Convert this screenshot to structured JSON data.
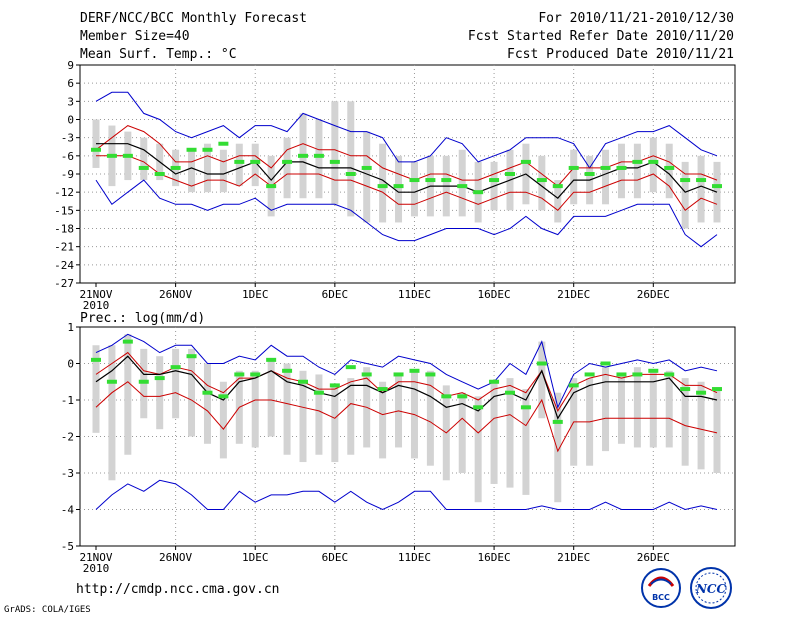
{
  "header": {
    "title": "DERF/NCC/BCC Monthly Forecast",
    "member_size": "Member Size=40",
    "variable": "Mean Surf. Temp.: °C",
    "forecast_period": "For 2010/11/21-2010/12/30",
    "started_date": "Fcst Started Refer Date 2010/11/20",
    "produced_date": "Fcst Produced Date 2010/11/21"
  },
  "footer": {
    "url": "http://cmdp.ncc.cma.gov.cn",
    "grads": "GrADS: COLA/IGES",
    "logo_bcc": "BCC",
    "logo_ncc": "NCC"
  },
  "colors": {
    "envelope": "#0000cc",
    "spread": "#cc0000",
    "mean": "#000000",
    "observed": "#33dd33",
    "box": "#d3d3d3",
    "grid": "#999999"
  },
  "chart_data": [
    {
      "type": "line",
      "title": "Mean Surf. Temp.: °C",
      "ylim": [
        -27,
        9
      ],
      "yticks": [
        "9",
        "6",
        "3",
        "0",
        "-3",
        "-6",
        "-9",
        "-12",
        "-15",
        "-18",
        "-21",
        "-24",
        "-27"
      ],
      "xticks": [
        "21NOV",
        "26NOV",
        "1DEC",
        "6DEC",
        "11DEC",
        "16DEC",
        "21DEC",
        "26DEC"
      ],
      "x_year": "2010",
      "xlim_days": [
        1,
        40
      ],
      "series": [
        {
          "name": "max",
          "values": [
            3,
            4.5,
            4.5,
            1,
            0,
            -2,
            -3,
            -2,
            -1,
            -3,
            -1,
            -1,
            -2,
            1,
            0,
            -1,
            -2,
            -2,
            -3,
            -7,
            -7,
            -6,
            -3,
            -4,
            -7,
            -6,
            -5,
            -3,
            -3,
            -3,
            -4,
            -8,
            -4,
            -3,
            -2,
            -2,
            -1,
            -3,
            -5,
            -6
          ]
        },
        {
          "name": "upper",
          "values": [
            -5,
            -3,
            -1,
            -2,
            -4,
            -7,
            -7,
            -6,
            -7,
            -6,
            -6,
            -8,
            -5,
            -4,
            -5,
            -5,
            -6,
            -6,
            -8,
            -9,
            -10,
            -9,
            -9,
            -10,
            -10,
            -9,
            -8,
            -7,
            -9,
            -11,
            -8,
            -8,
            -8,
            -7,
            -7,
            -6,
            -7,
            -9,
            -9,
            -10
          ]
        },
        {
          "name": "mean",
          "values": [
            -4,
            -4,
            -4,
            -5,
            -7,
            -9,
            -8,
            -9,
            -9,
            -8,
            -7,
            -10,
            -7,
            -7,
            -8,
            -8,
            -8,
            -9,
            -10,
            -12,
            -12,
            -11,
            -11,
            -11,
            -12,
            -11,
            -10,
            -9,
            -11,
            -13,
            -10,
            -10,
            -9,
            -8,
            -8,
            -7,
            -9,
            -12,
            -11,
            -12
          ]
        },
        {
          "name": "lower",
          "values": [
            -6,
            -6,
            -6,
            -7,
            -9,
            -10,
            -11,
            -10,
            -10,
            -11,
            -9,
            -11,
            -9,
            -9,
            -9,
            -10,
            -10,
            -11,
            -12,
            -14,
            -14,
            -13,
            -12,
            -13,
            -14,
            -13,
            -12,
            -12,
            -13,
            -15,
            -12,
            -12,
            -11,
            -10,
            -10,
            -9,
            -11,
            -15,
            -13,
            -14
          ]
        },
        {
          "name": "min",
          "values": [
            -10,
            -14,
            -12,
            -10,
            -13,
            -14,
            -14,
            -15,
            -14,
            -14,
            -13,
            -15,
            -14,
            -14,
            -14,
            -14,
            -15,
            -17,
            -19,
            -20,
            -20,
            -19,
            -18,
            -18,
            -18,
            -19,
            -18,
            -16,
            -18,
            -19,
            -16,
            -16,
            -16,
            -15,
            -14,
            -14,
            -14,
            -19,
            -21,
            -19
          ]
        },
        {
          "name": "observed",
          "values": [
            -5,
            -6,
            -6,
            -8,
            -9,
            -8,
            -5,
            -5,
            -4,
            -7,
            -7,
            -11,
            -7,
            -6,
            -6,
            -7,
            -9,
            -8,
            -11,
            -11,
            -10,
            -10,
            -10,
            -11,
            -12,
            -10,
            -9,
            -7,
            -10,
            -11,
            -8,
            -9,
            -8,
            -8,
            -7,
            -7,
            -8,
            -10,
            -10,
            -11
          ]
        },
        {
          "name": "box_top",
          "values": [
            0,
            -1,
            -2,
            -3,
            -4,
            -5,
            -5,
            -4,
            -5,
            -4,
            -4,
            -6,
            -3,
            1,
            0,
            3,
            3,
            -2,
            -4,
            -6,
            -7,
            -6,
            -6,
            -5,
            -7,
            -7,
            -5,
            -4,
            -6,
            -10,
            -5,
            -6,
            -5,
            -4,
            -4,
            -3,
            -4,
            -7,
            -6,
            -7
          ]
        },
        {
          "name": "box_bottom",
          "values": [
            -8,
            -11,
            -10,
            -10,
            -10,
            -11,
            -12,
            -12,
            -12,
            -11,
            -11,
            -16,
            -13,
            -13,
            -13,
            -14,
            -16,
            -17,
            -17,
            -17,
            -16,
            -16,
            -16,
            -16,
            -17,
            -15,
            -15,
            -14,
            -15,
            -17,
            -14,
            -14,
            -14,
            -13,
            -13,
            -12,
            -13,
            -18,
            -17,
            -17
          ]
        }
      ]
    },
    {
      "type": "line",
      "title": "Prec.: log(mm/d)",
      "ylim": [
        -5,
        1
      ],
      "yticks": [
        "1",
        "0",
        "-1",
        "-2",
        "-3",
        "-4",
        "-5"
      ],
      "xticks": [
        "21NOV",
        "26NOV",
        "1DEC",
        "6DEC",
        "11DEC",
        "16DEC",
        "21DEC",
        "26DEC"
      ],
      "x_year": "2010",
      "xlim_days": [
        1,
        40
      ],
      "series": [
        {
          "name": "max",
          "values": [
            0.3,
            0.5,
            0.8,
            0.6,
            0.3,
            0.5,
            0.5,
            0,
            0,
            0.2,
            0.1,
            0.5,
            0.2,
            0.2,
            -0.1,
            -0.3,
            0.1,
            0,
            -0.1,
            0.2,
            0.1,
            0,
            -0.3,
            -0.5,
            -0.7,
            -0.5,
            0,
            -0.3,
            0.6,
            -1.2,
            -0.3,
            0,
            -0.1,
            0,
            0.1,
            0,
            0.1,
            -0.2,
            -0.1,
            -0.2
          ]
        },
        {
          "name": "upper",
          "values": [
            -0.3,
            0,
            0.3,
            -0.2,
            -0.3,
            -0.1,
            -0.2,
            -0.6,
            -0.8,
            -0.4,
            -0.4,
            -0.2,
            -0.4,
            -0.5,
            -0.7,
            -0.7,
            -0.5,
            -0.4,
            -0.8,
            -0.5,
            -0.5,
            -0.6,
            -0.9,
            -0.8,
            -1,
            -0.7,
            -0.6,
            -0.8,
            -0.2,
            -1.3,
            -0.6,
            -0.4,
            -0.3,
            -0.4,
            -0.3,
            -0.3,
            -0.3,
            -0.6,
            -0.6,
            -0.8
          ]
        },
        {
          "name": "mean",
          "values": [
            -0.5,
            -0.2,
            0.2,
            -0.3,
            -0.3,
            -0.2,
            -0.3,
            -0.8,
            -1,
            -0.5,
            -0.4,
            -0.2,
            -0.5,
            -0.6,
            -0.8,
            -0.9,
            -0.6,
            -0.6,
            -0.8,
            -0.6,
            -0.7,
            -0.9,
            -1.2,
            -1.1,
            -1.3,
            -0.9,
            -0.8,
            -1,
            -0.2,
            -1.5,
            -0.8,
            -0.6,
            -0.5,
            -0.5,
            -0.5,
            -0.5,
            -0.4,
            -0.9,
            -0.9,
            -1
          ]
        },
        {
          "name": "lower",
          "values": [
            -1.2,
            -0.8,
            -0.5,
            -0.9,
            -0.9,
            -0.8,
            -1,
            -1.3,
            -1.8,
            -1.2,
            -1,
            -1,
            -1.1,
            -1.2,
            -1.3,
            -1.5,
            -1.1,
            -1.2,
            -1.4,
            -1.3,
            -1.4,
            -1.6,
            -1.9,
            -1.5,
            -1.9,
            -1.5,
            -1.4,
            -1.7,
            -1,
            -2.4,
            -1.6,
            -1.6,
            -1.5,
            -1.5,
            -1.5,
            -1.5,
            -1.5,
            -1.7,
            -1.8,
            -1.9
          ]
        },
        {
          "name": "min",
          "values": [
            -4,
            -3.6,
            -3.3,
            -3.5,
            -3.2,
            -3.3,
            -3.6,
            -4,
            -4,
            -3.5,
            -3.8,
            -3.6,
            -3.6,
            -3.5,
            -3.5,
            -3.8,
            -3.5,
            -3.8,
            -4,
            -3.8,
            -3.5,
            -3.5,
            -4,
            -4,
            -4,
            -4,
            -4,
            -4,
            -3.9,
            -4,
            -4,
            -4,
            -3.8,
            -4,
            -4,
            -4,
            -3.8,
            -4,
            -3.9,
            -4
          ]
        },
        {
          "name": "observed",
          "values": [
            0.1,
            -0.5,
            0.6,
            -0.5,
            -0.4,
            -0.1,
            0.2,
            -0.8,
            -0.9,
            -0.3,
            -0.3,
            0.1,
            -0.2,
            -0.5,
            -0.8,
            -0.6,
            -0.1,
            -0.3,
            -0.7,
            -0.3,
            -0.2,
            -0.3,
            -0.9,
            -0.9,
            -1.2,
            -0.5,
            -0.8,
            -1.2,
            0,
            -1.6,
            -0.6,
            -0.3,
            0,
            -0.3,
            -0.3,
            -0.2,
            -0.3,
            -0.7,
            -0.8,
            -0.7
          ]
        },
        {
          "name": "box_top",
          "values": [
            0.5,
            0.5,
            0.8,
            0.4,
            0.2,
            0.4,
            0.4,
            0,
            -0.5,
            -0.2,
            -0.2,
            0.1,
            0,
            -0.2,
            -0.3,
            -0.6,
            -0.4,
            -0.1,
            -0.5,
            -0.3,
            -0.2,
            -0.2,
            -0.6,
            -0.8,
            -0.9,
            -0.5,
            -0.4,
            -0.7,
            0.6,
            -0.8,
            -0.4,
            -0.4,
            -0.1,
            -0.3,
            -0.1,
            -0.2,
            -0.2,
            -0.4,
            -0.5,
            -0.7
          ]
        },
        {
          "name": "box_bottom",
          "values": [
            -1.9,
            -3.2,
            -2.5,
            -1.5,
            -1.8,
            -1.5,
            -2,
            -2.2,
            -2.6,
            -2.2,
            -2.3,
            -2,
            -2.5,
            -2.7,
            -2.5,
            -2.7,
            -2.5,
            -2.3,
            -2.6,
            -2.3,
            -2.6,
            -2.8,
            -3.2,
            -3,
            -3.8,
            -3.3,
            -3.4,
            -3.6,
            -1.5,
            -3.8,
            -2.8,
            -2.8,
            -2.4,
            -2.2,
            -2.3,
            -2.3,
            -2.3,
            -2.8,
            -2.9,
            -3
          ]
        }
      ]
    }
  ]
}
